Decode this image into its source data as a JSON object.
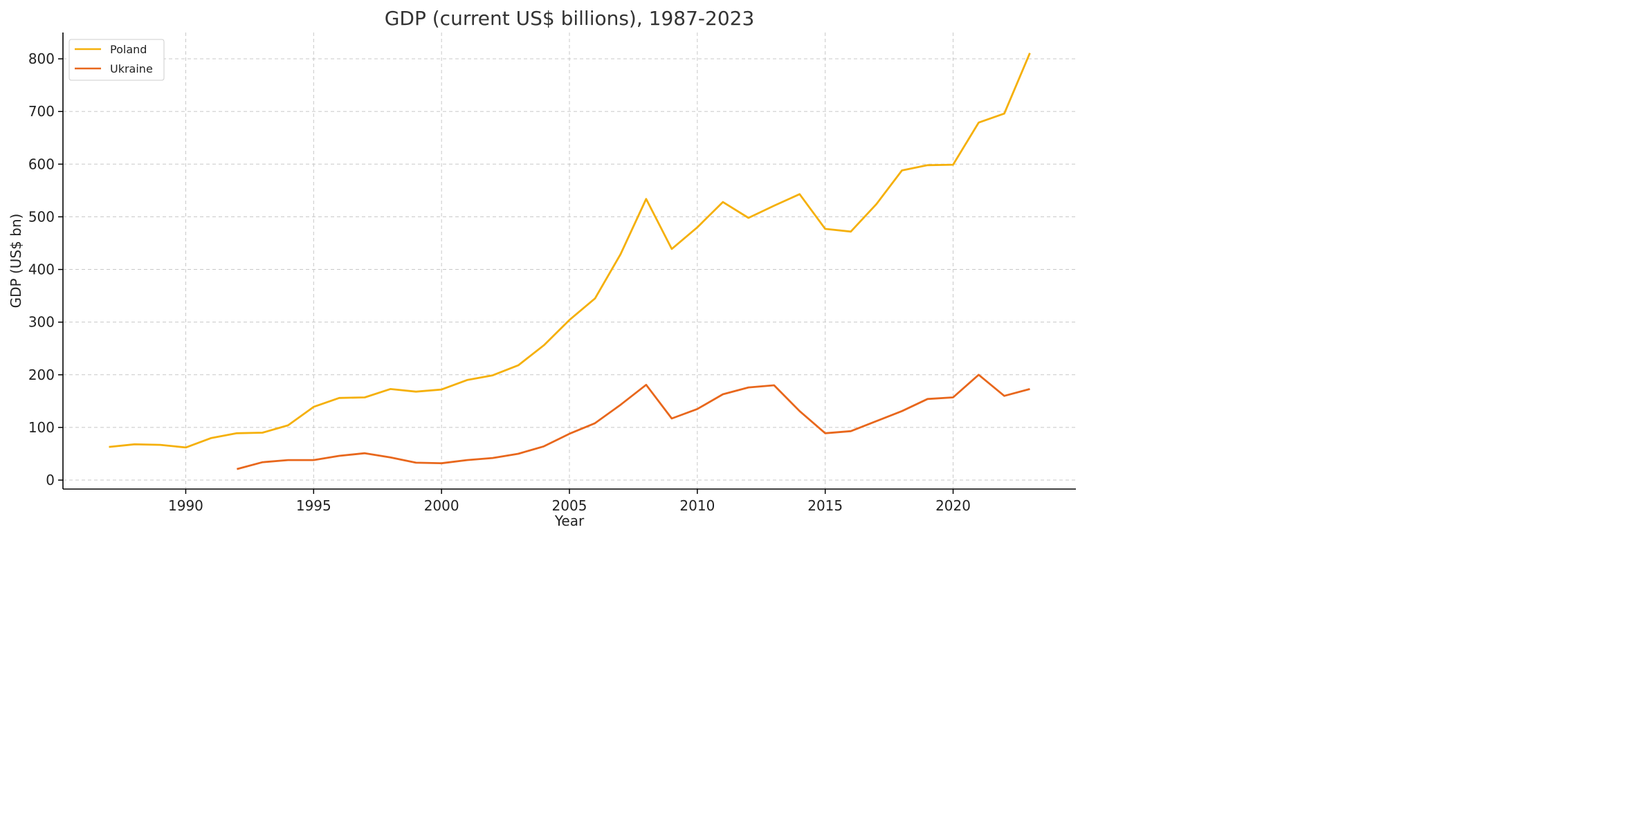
{
  "chart_data": {
    "type": "line",
    "title": "GDP (current US$ billions), 1987-2023",
    "xlabel": "Year",
    "ylabel": "GDP (US$ bn)",
    "xlim": [
      1985.2,
      2024.8
    ],
    "ylim": [
      -17,
      850
    ],
    "xticks": [
      1990,
      1995,
      2000,
      2005,
      2010,
      2015,
      2020
    ],
    "yticks": [
      0,
      100,
      200,
      300,
      400,
      500,
      600,
      700,
      800
    ],
    "grid": true,
    "legend_position": "top-left",
    "series": [
      {
        "name": "Poland",
        "color": "#F5B00A",
        "x": [
          1987,
          1988,
          1989,
          1990,
          1991,
          1992,
          1993,
          1994,
          1995,
          1996,
          1997,
          1998,
          1999,
          2000,
          2001,
          2002,
          2003,
          2004,
          2005,
          2006,
          2007,
          2008,
          2009,
          2010,
          2011,
          2012,
          2013,
          2014,
          2015,
          2016,
          2017,
          2018,
          2019,
          2020,
          2021,
          2022,
          2023
        ],
        "values": [
          63,
          68,
          67,
          62,
          80,
          89,
          90,
          104,
          139,
          156,
          157,
          173,
          168,
          172,
          190,
          199,
          218,
          256,
          304,
          345,
          429,
          534,
          439,
          480,
          528,
          498,
          521,
          543,
          477,
          472,
          524,
          588,
          598,
          599,
          679,
          696,
          811
        ]
      },
      {
        "name": "Ukraine",
        "color": "#E8671C",
        "x": [
          1992,
          1993,
          1994,
          1995,
          1996,
          1997,
          1998,
          1999,
          2000,
          2001,
          2002,
          2003,
          2004,
          2005,
          2006,
          2007,
          2008,
          2009,
          2010,
          2011,
          2012,
          2013,
          2014,
          2015,
          2016,
          2017,
          2018,
          2019,
          2020,
          2021,
          2022,
          2023
        ],
        "values": [
          21,
          34,
          38,
          38,
          46,
          51,
          43,
          33,
          32,
          38,
          42,
          50,
          64,
          88,
          108,
          143,
          181,
          117,
          135,
          163,
          176,
          180,
          131,
          89,
          93,
          112,
          131,
          154,
          157,
          200,
          160,
          173
        ]
      }
    ]
  }
}
